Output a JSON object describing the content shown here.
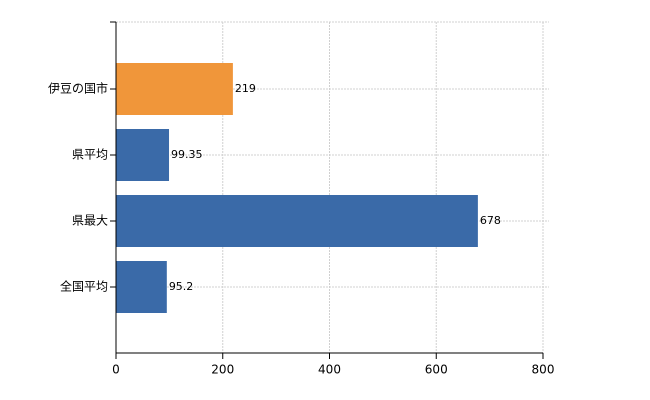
{
  "chart_data": {
    "type": "hbar",
    "categories": [
      "伊豆の国市",
      "県平均",
      "県最大",
      "全国平均"
    ],
    "values": [
      219,
      99.35,
      678,
      95.2
    ],
    "colors": [
      "#f0963a",
      "#3a6aa8",
      "#3a6aa8",
      "#3a6aa8"
    ],
    "xlim": [
      0,
      800
    ],
    "xticks": [
      0,
      200,
      400,
      600,
      800
    ],
    "grid": true
  }
}
